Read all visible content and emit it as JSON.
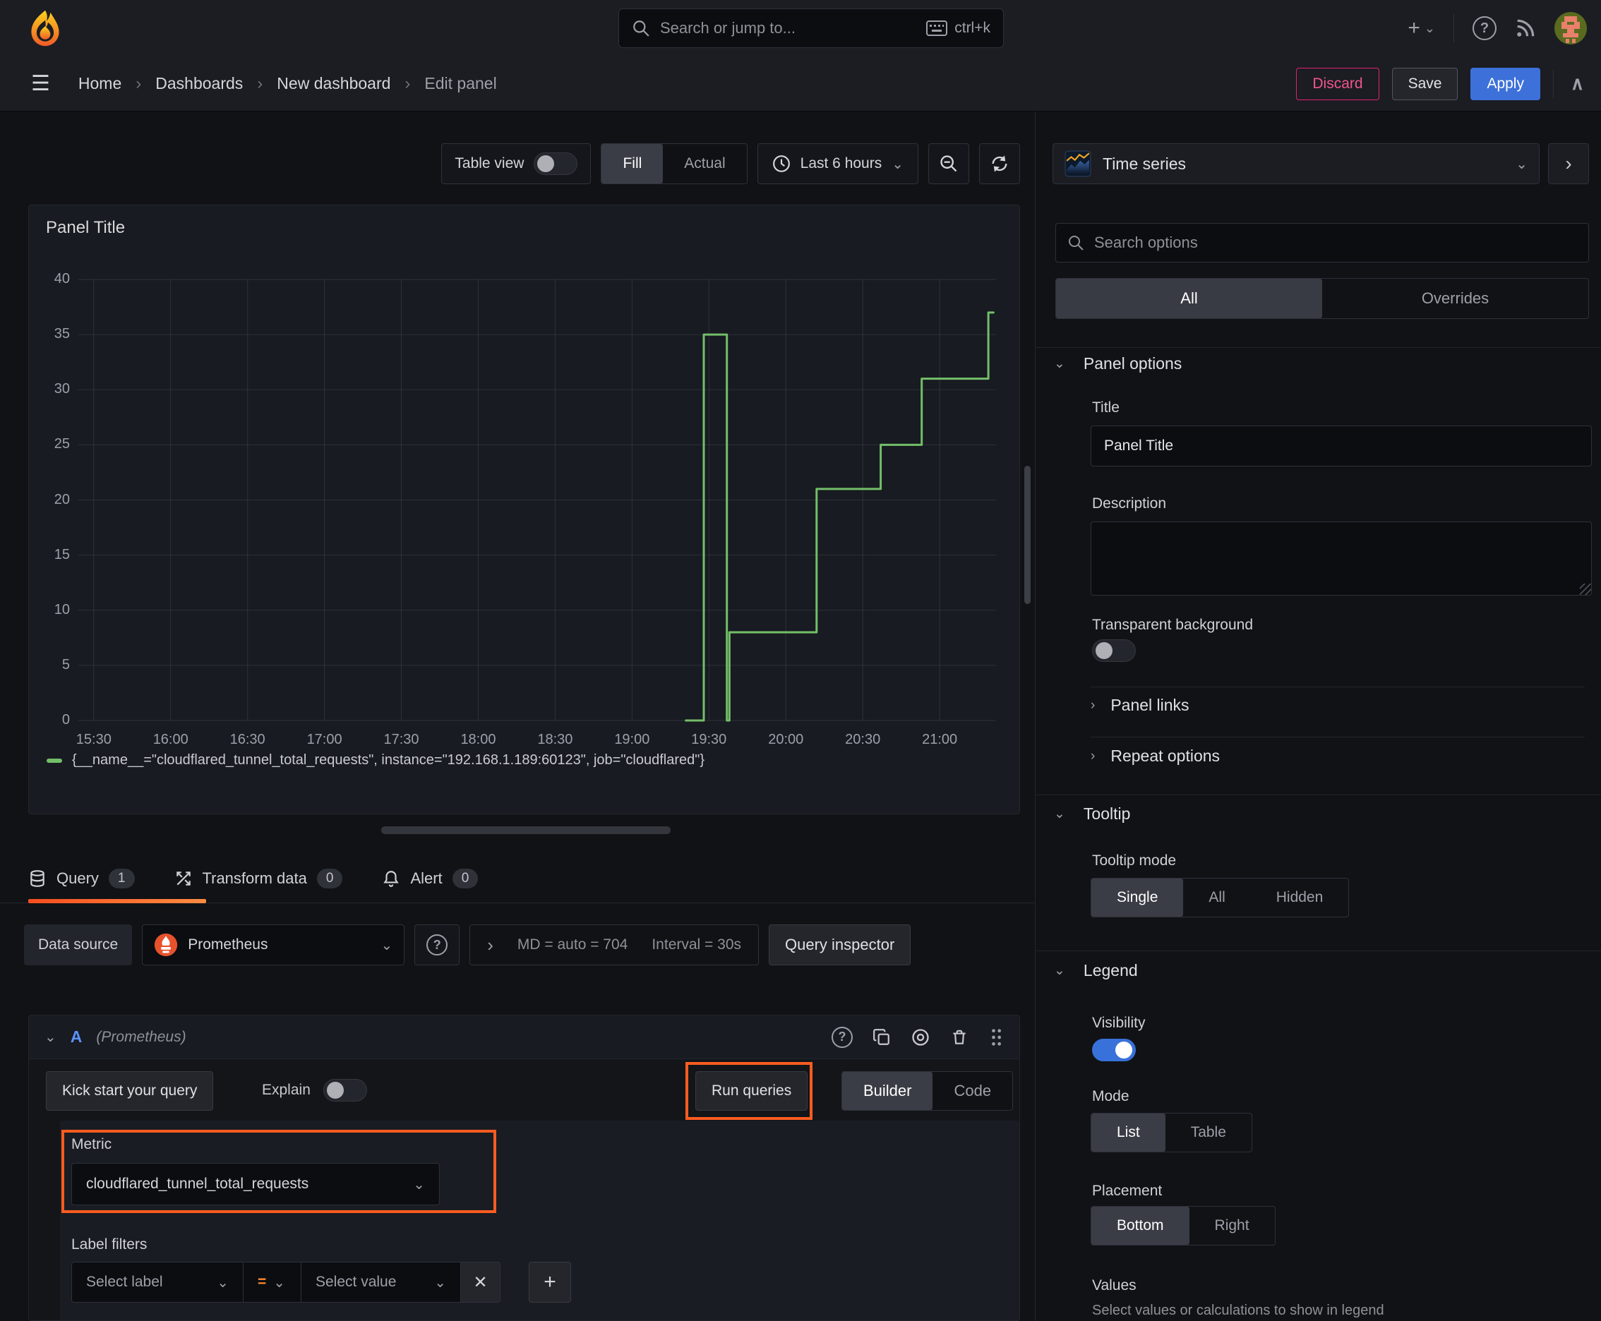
{
  "topnav": {
    "search_placeholder": "Search or jump to...",
    "search_shortcut": "ctrl+k",
    "add_label": "+"
  },
  "breadcrumb": {
    "items": [
      "Home",
      "Dashboards",
      "New dashboard",
      "Edit panel"
    ]
  },
  "header_actions": {
    "discard": "Discard",
    "save": "Save",
    "apply": "Apply"
  },
  "toolbar": {
    "table_view": "Table view",
    "fill": "Fill",
    "actual": "Actual",
    "time_range": "Last 6 hours"
  },
  "viz_picker": {
    "label": "Time series"
  },
  "panel": {
    "title": "Panel Title"
  },
  "chart_data": {
    "type": "line",
    "line_interpolation": "step",
    "series": [
      {
        "name": "{__name__=\"cloudflared_tunnel_total_requests\", instance=\"192.168.1.189:60123\", job=\"cloudflared\"}",
        "color": "#73bf69"
      }
    ],
    "legend_label": "{__name__=\"cloudflared_tunnel_total_requests\", instance=\"192.168.1.189:60123\", job=\"cloudflared\"}",
    "x_ticks": [
      "15:30",
      "16:00",
      "16:30",
      "17:00",
      "17:30",
      "18:00",
      "18:30",
      "19:00",
      "19:30",
      "20:00",
      "20:30",
      "21:00"
    ],
    "y_ticks": [
      0,
      5,
      10,
      15,
      20,
      25,
      30,
      35,
      40
    ],
    "ylim": [
      0,
      40
    ],
    "x_domain": [
      "15:24",
      "21:22"
    ],
    "points": [
      [
        "19:21",
        0
      ],
      [
        "19:28",
        0
      ],
      [
        "19:28",
        35
      ],
      [
        "19:37",
        35
      ],
      [
        "19:37",
        0
      ],
      [
        "19:38",
        0
      ],
      [
        "19:38",
        8
      ],
      [
        "20:12",
        8
      ],
      [
        "20:12",
        21
      ],
      [
        "20:37",
        21
      ],
      [
        "20:37",
        25
      ],
      [
        "20:53",
        25
      ],
      [
        "20:53",
        31
      ],
      [
        "21:19",
        31
      ],
      [
        "21:19",
        37
      ],
      [
        "21:21",
        37
      ]
    ],
    "grid": true,
    "legend_position": "bottom"
  },
  "query_tabs": {
    "query": {
      "label": "Query",
      "count": "1"
    },
    "transform": {
      "label": "Transform data",
      "count": "0"
    },
    "alert": {
      "label": "Alert",
      "count": "0"
    }
  },
  "datasource_row": {
    "label": "Data source",
    "name": "Prometheus",
    "expander": "›",
    "md_text": "MD = auto = 704",
    "interval_text": "Interval = 30s",
    "inspector": "Query inspector"
  },
  "query": {
    "ref": "A",
    "ds_hint": "(Prometheus)",
    "kick_start": "Kick start your query",
    "explain": "Explain",
    "run_queries": "Run queries",
    "builder": "Builder",
    "code": "Code",
    "metric_label": "Metric",
    "metric_value": "cloudflared_tunnel_total_requests",
    "label_filters": "Label filters",
    "select_label": "Select label",
    "operator": "=",
    "select_value": "Select value",
    "remove": "✕",
    "add": "+"
  },
  "options": {
    "search_placeholder": "Search options",
    "tab_all": "All",
    "tab_overrides": "Overrides",
    "panel_options": {
      "heading": "Panel options",
      "title_label": "Title",
      "title_value": "Panel Title",
      "description_label": "Description",
      "transparent_label": "Transparent background",
      "panel_links": "Panel links",
      "repeat_options": "Repeat options"
    },
    "tooltip": {
      "heading": "Tooltip",
      "mode_label": "Tooltip mode",
      "single": "Single",
      "all": "All",
      "hidden": "Hidden"
    },
    "legend": {
      "heading": "Legend",
      "visibility_label": "Visibility",
      "mode_label": "Mode",
      "list": "List",
      "table": "Table",
      "placement_label": "Placement",
      "bottom": "Bottom",
      "right": "Right",
      "values_label": "Values",
      "values_hint": "Select values or calculations to show in legend"
    }
  },
  "colors": {
    "accent_blue": "#3d71d9",
    "highlight_orange": "#ff5c21",
    "series_green": "#73bf69",
    "discard_pink": "#e0226e"
  }
}
